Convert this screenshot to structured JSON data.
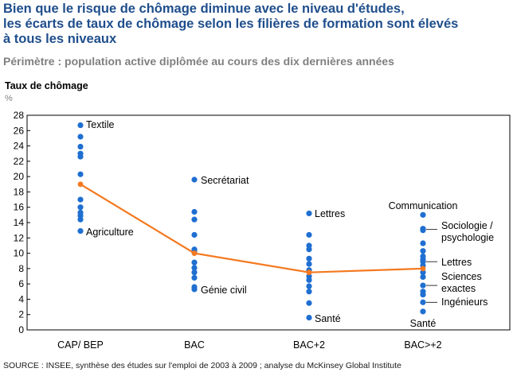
{
  "header": {
    "title_lines": [
      "Bien que le risque de chômage diminue avec le niveau d'études,",
      "les écarts de taux de chômage selon les filières de formation sont élevés",
      "à tous les niveaux"
    ],
    "subtitle": "Périmètre : population active diplômée au cours des dix dernières années"
  },
  "footer": {
    "source": "SOURCE : INSEE, synthèse des études sur l'emploi de 2003 à 2009 ; analyse du McKinsey Global Institute"
  },
  "colors": {
    "dots": "#1f6fd1",
    "line": "#f47920",
    "text": "#000000"
  },
  "chart_data": {
    "type": "scatter",
    "ylabel": "Taux de chômage",
    "yunit": "%",
    "ylim": [
      0,
      28
    ],
    "yticks": [
      0,
      2,
      4,
      6,
      8,
      10,
      12,
      14,
      16,
      18,
      20,
      22,
      24,
      26,
      28
    ],
    "grid": false,
    "categories": [
      "CAP/ BEP",
      "BAC",
      "BAC+2",
      "BAC>+2"
    ],
    "scatter_values": [
      [
        26.7,
        25.2,
        23.9,
        23.0,
        22.6,
        20.3,
        17.0,
        16.0,
        15.3,
        14.9,
        14.4,
        12.9
      ],
      [
        19.6,
        15.4,
        14.4,
        12.4,
        10.5,
        10.2,
        8.8,
        8.1,
        7.5,
        6.8,
        5.6,
        5.3
      ],
      [
        15.2,
        12.4,
        11.0,
        10.5,
        9.3,
        8.6,
        7.8,
        7.0,
        6.5,
        5.7,
        5.0,
        3.5,
        1.6
      ],
      [
        15.0,
        13.2,
        13.0,
        11.3,
        10.3,
        9.6,
        9.2,
        8.9,
        8.4,
        7.5,
        6.9,
        5.8,
        5.0,
        4.6,
        3.6,
        2.4
      ]
    ],
    "average_line": [
      19.0,
      10.0,
      7.5,
      8.0
    ],
    "annotations": [
      {
        "category": "CAP/ BEP",
        "y": 26.7,
        "text": "Textile"
      },
      {
        "category": "CAP/ BEP",
        "y": 12.9,
        "text": "Agriculture"
      },
      {
        "category": "BAC",
        "y": 19.6,
        "text": "Secrétariat"
      },
      {
        "category": "BAC",
        "y": 5.3,
        "text": "Génie civil"
      },
      {
        "category": "BAC+2",
        "y": 15.2,
        "text": "Lettres"
      },
      {
        "category": "BAC+2",
        "y": 1.6,
        "text": "Santé"
      },
      {
        "category": "BAC>+2",
        "y": 15.0,
        "text": "Communication"
      },
      {
        "category": "BAC>+2",
        "y": 13.1,
        "text": "Sociologie / psychologie"
      },
      {
        "category": "BAC>+2",
        "y": 8.9,
        "text": "Lettres"
      },
      {
        "category": "BAC>+2",
        "y": 5.8,
        "text": "Sciences exactes"
      },
      {
        "category": "BAC>+2",
        "y": 3.6,
        "text": "Ingénieurs"
      },
      {
        "category": "BAC>+2",
        "y": 2.4,
        "text": "Santé"
      }
    ]
  }
}
